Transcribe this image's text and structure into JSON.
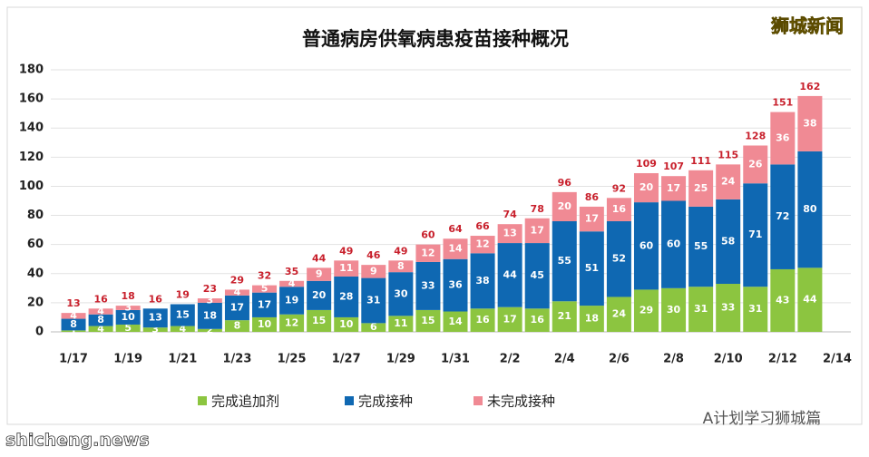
{
  "chart_data": {
    "type": "stacked-bar",
    "title": "普通病房供氧病患疫苗接种概况",
    "watermark": "狮城新闻",
    "footer_left": "shicheng.news",
    "footer_right": "A计划学习狮城篇",
    "categories": [
      "1/17",
      null,
      "1/19",
      null,
      "1/21",
      null,
      "1/23",
      null,
      "1/25",
      null,
      "1/27",
      null,
      "1/29",
      null,
      "1/31",
      null,
      "2/2",
      null,
      "2/4",
      null,
      "2/6",
      null,
      "2/8",
      null,
      "2/10",
      null,
      "2/12",
      null,
      "2/14"
    ],
    "series": [
      {
        "name": "完成追加剂",
        "color": "#8cc540",
        "values": [
          1,
          4,
          5,
          3,
          4,
          2,
          8,
          10,
          12,
          15,
          10,
          6,
          11,
          15,
          14,
          16,
          17,
          16,
          21,
          18,
          24,
          29,
          30,
          31,
          33,
          31,
          43,
          44,
          null
        ]
      },
      {
        "name": "完成接种",
        "color": "#0f68b2",
        "values": [
          8,
          8,
          10,
          13,
          15,
          18,
          17,
          17,
          19,
          20,
          28,
          31,
          30,
          33,
          36,
          38,
          44,
          45,
          55,
          51,
          52,
          60,
          60,
          55,
          58,
          71,
          72,
          80,
          null
        ]
      },
      {
        "name": "未完成接种",
        "color": "#f08a94",
        "values": [
          4,
          4,
          3,
          0,
          0,
          3,
          4,
          5,
          4,
          9,
          11,
          9,
          8,
          12,
          14,
          12,
          13,
          17,
          20,
          17,
          16,
          20,
          17,
          25,
          24,
          26,
          36,
          38,
          null
        ]
      }
    ],
    "totals": [
      13,
      16,
      18,
      16,
      19,
      23,
      29,
      32,
      35,
      44,
      49,
      46,
      49,
      60,
      64,
      66,
      74,
      78,
      96,
      86,
      92,
      109,
      107,
      111,
      115,
      128,
      151,
      162,
      null
    ],
    "ylim": [
      0,
      180
    ],
    "yticks": [
      0,
      20,
      40,
      60,
      80,
      100,
      120,
      140,
      160,
      180
    ],
    "grid": true
  }
}
